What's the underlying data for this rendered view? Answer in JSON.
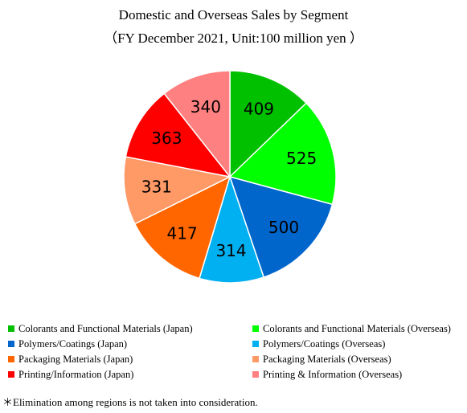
{
  "chart_data": {
    "type": "pie",
    "title": "Domestic and Overseas Sales by Segment",
    "subtitle": "（FY December 2021, Unit:100 million yen ）",
    "slices": [
      {
        "label": "Colorants and Functional Materials (Japan)",
        "value": 409,
        "color": "#00c000"
      },
      {
        "label": "Colorants and Functional Materials (Overseas)",
        "value": 525,
        "color": "#00ff00"
      },
      {
        "label": "Polymers/Coatings (Japan)",
        "value": 500,
        "color": "#0066cc"
      },
      {
        "label": "Polymers/Coatings (Overseas)",
        "value": 314,
        "color": "#00b0f0"
      },
      {
        "label": "Packaging Materials (Japan)",
        "value": 417,
        "color": "#ff6600"
      },
      {
        "label": "Packaging Materials (Overseas)",
        "value": 331,
        "color": "#ff9966"
      },
      {
        "label": "Printing/Information (Japan)",
        "value": 363,
        "color": "#ff0000"
      },
      {
        "label": "Printing & Information (Overseas)",
        "value": 340,
        "color": "#ff8080"
      }
    ],
    "start_angle_deg": 0,
    "direction": "clockwise",
    "legend_position": "bottom"
  },
  "footnote": "＊Elimination among regions is not taken into consideration."
}
